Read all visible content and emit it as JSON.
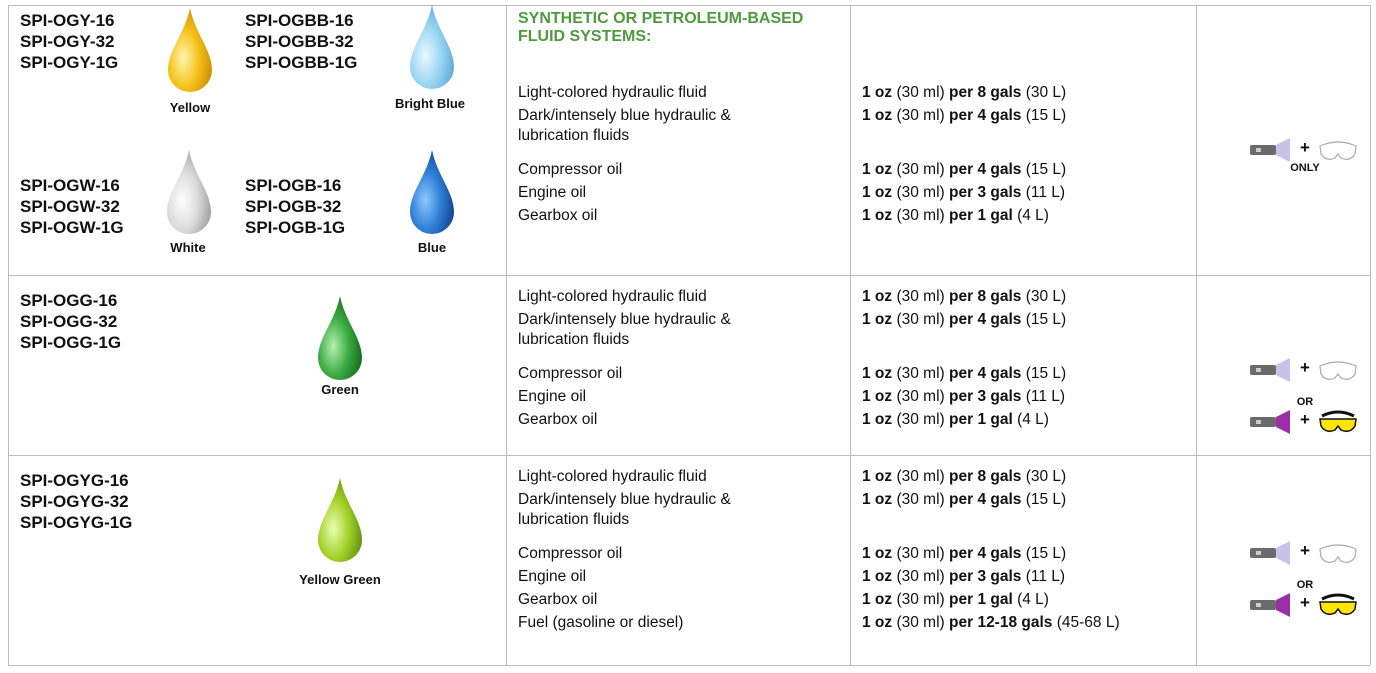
{
  "rows": [
    {
      "heading": "SYNTHETIC OR PETROLEUM-BASED FLUID SYSTEMS:",
      "products": [
        {
          "codes": [
            "SPI-OGY-16",
            "SPI-OGY-32",
            "SPI-OGY-1G"
          ],
          "color": "Yellow"
        },
        {
          "codes": [
            "SPI-OGBB-16",
            "SPI-OGBB-32",
            "SPI-OGBB-1G"
          ],
          "color": "Bright Blue"
        },
        {
          "codes": [
            "SPI-OGW-16",
            "SPI-OGW-32",
            "SPI-OGW-1G"
          ],
          "color": "White"
        },
        {
          "codes": [
            "SPI-OGB-16",
            "SPI-OGB-32",
            "SPI-OGB-1G"
          ],
          "color": "Blue"
        }
      ],
      "fluids": [
        "Light-colored hydraulic fluid",
        "Dark/intensely blue hydraulic & lubrication fluids",
        "Compressor oil",
        "Engine oil",
        "Gearbox oil"
      ],
      "dosages": [
        {
          "amount": "1 oz",
          "amount_metric": "(30 ml)",
          "rate": "per 8 gals",
          "rate_metric": "(30 L)"
        },
        {
          "amount": "1 oz",
          "amount_metric": "(30 ml)",
          "rate": "per 4 gals",
          "rate_metric": "(15 L)"
        },
        {
          "amount": "1 oz",
          "amount_metric": "(30 ml)",
          "rate": "per 4 gals",
          "rate_metric": "(15 L)"
        },
        {
          "amount": "1 oz",
          "amount_metric": "(30 ml)",
          "rate": "per 3 gals",
          "rate_metric": "(11 L)"
        },
        {
          "amount": "1 oz",
          "amount_metric": "(30 ml)",
          "rate": "per 1 gal",
          "rate_metric": "(4 L)"
        }
      ],
      "tools": {
        "plus": [
          "+"
        ],
        "note": "ONLY"
      }
    },
    {
      "products": [
        {
          "codes": [
            "SPI-OGG-16",
            "SPI-OGG-32",
            "SPI-OGG-1G"
          ],
          "color": "Green"
        }
      ],
      "fluids": [
        "Light-colored hydraulic fluid",
        "Dark/intensely blue hydraulic & lubrication fluids",
        "Compressor oil",
        "Engine oil",
        "Gearbox oil"
      ],
      "dosages": [
        {
          "amount": "1 oz",
          "amount_metric": "(30 ml)",
          "rate": "per 8 gals",
          "rate_metric": "(30 L)"
        },
        {
          "amount": "1 oz",
          "amount_metric": "(30 ml)",
          "rate": "per 4 gals",
          "rate_metric": "(15 L)"
        },
        {
          "amount": "1 oz",
          "amount_metric": "(30 ml)",
          "rate": "per 4 gals",
          "rate_metric": "(15 L)"
        },
        {
          "amount": "1 oz",
          "amount_metric": "(30 ml)",
          "rate": "per 3 gals",
          "rate_metric": "(11 L)"
        },
        {
          "amount": "1 oz",
          "amount_metric": "(30 ml)",
          "rate": "per 1 gal",
          "rate_metric": "(4 L)"
        }
      ],
      "tools": {
        "plus": [
          "+",
          "+"
        ],
        "note": "OR"
      }
    },
    {
      "products": [
        {
          "codes": [
            "SPI-OGYG-16",
            "SPI-OGYG-32",
            "SPI-OGYG-1G"
          ],
          "color": "Yellow Green"
        }
      ],
      "fluids": [
        "Light-colored hydraulic fluid",
        "Dark/intensely blue hydraulic & lubrication fluids",
        "Compressor oil",
        "Engine oil",
        "Gearbox oil",
        "Fuel (gasoline or diesel)"
      ],
      "dosages": [
        {
          "amount": "1 oz",
          "amount_metric": "(30 ml)",
          "rate": "per 8 gals",
          "rate_metric": "(30 L)"
        },
        {
          "amount": "1 oz",
          "amount_metric": "(30 ml)",
          "rate": "per 4 gals",
          "rate_metric": "(15 L)"
        },
        {
          "amount": "1 oz",
          "amount_metric": "(30 ml)",
          "rate": "per 4 gals",
          "rate_metric": "(15 L)"
        },
        {
          "amount": "1 oz",
          "amount_metric": "(30 ml)",
          "rate": "per 3 gals",
          "rate_metric": "(11 L)"
        },
        {
          "amount": "1 oz",
          "amount_metric": "(30 ml)",
          "rate": "per 1 gal",
          "rate_metric": "(4 L)"
        },
        {
          "amount": "1 oz",
          "amount_metric": "(30 ml)",
          "rate": "per 12-18 gals",
          "rate_metric": "(45-68 L)"
        }
      ],
      "tools": {
        "plus": [
          "+",
          "+"
        ],
        "note": "OR"
      }
    }
  ]
}
